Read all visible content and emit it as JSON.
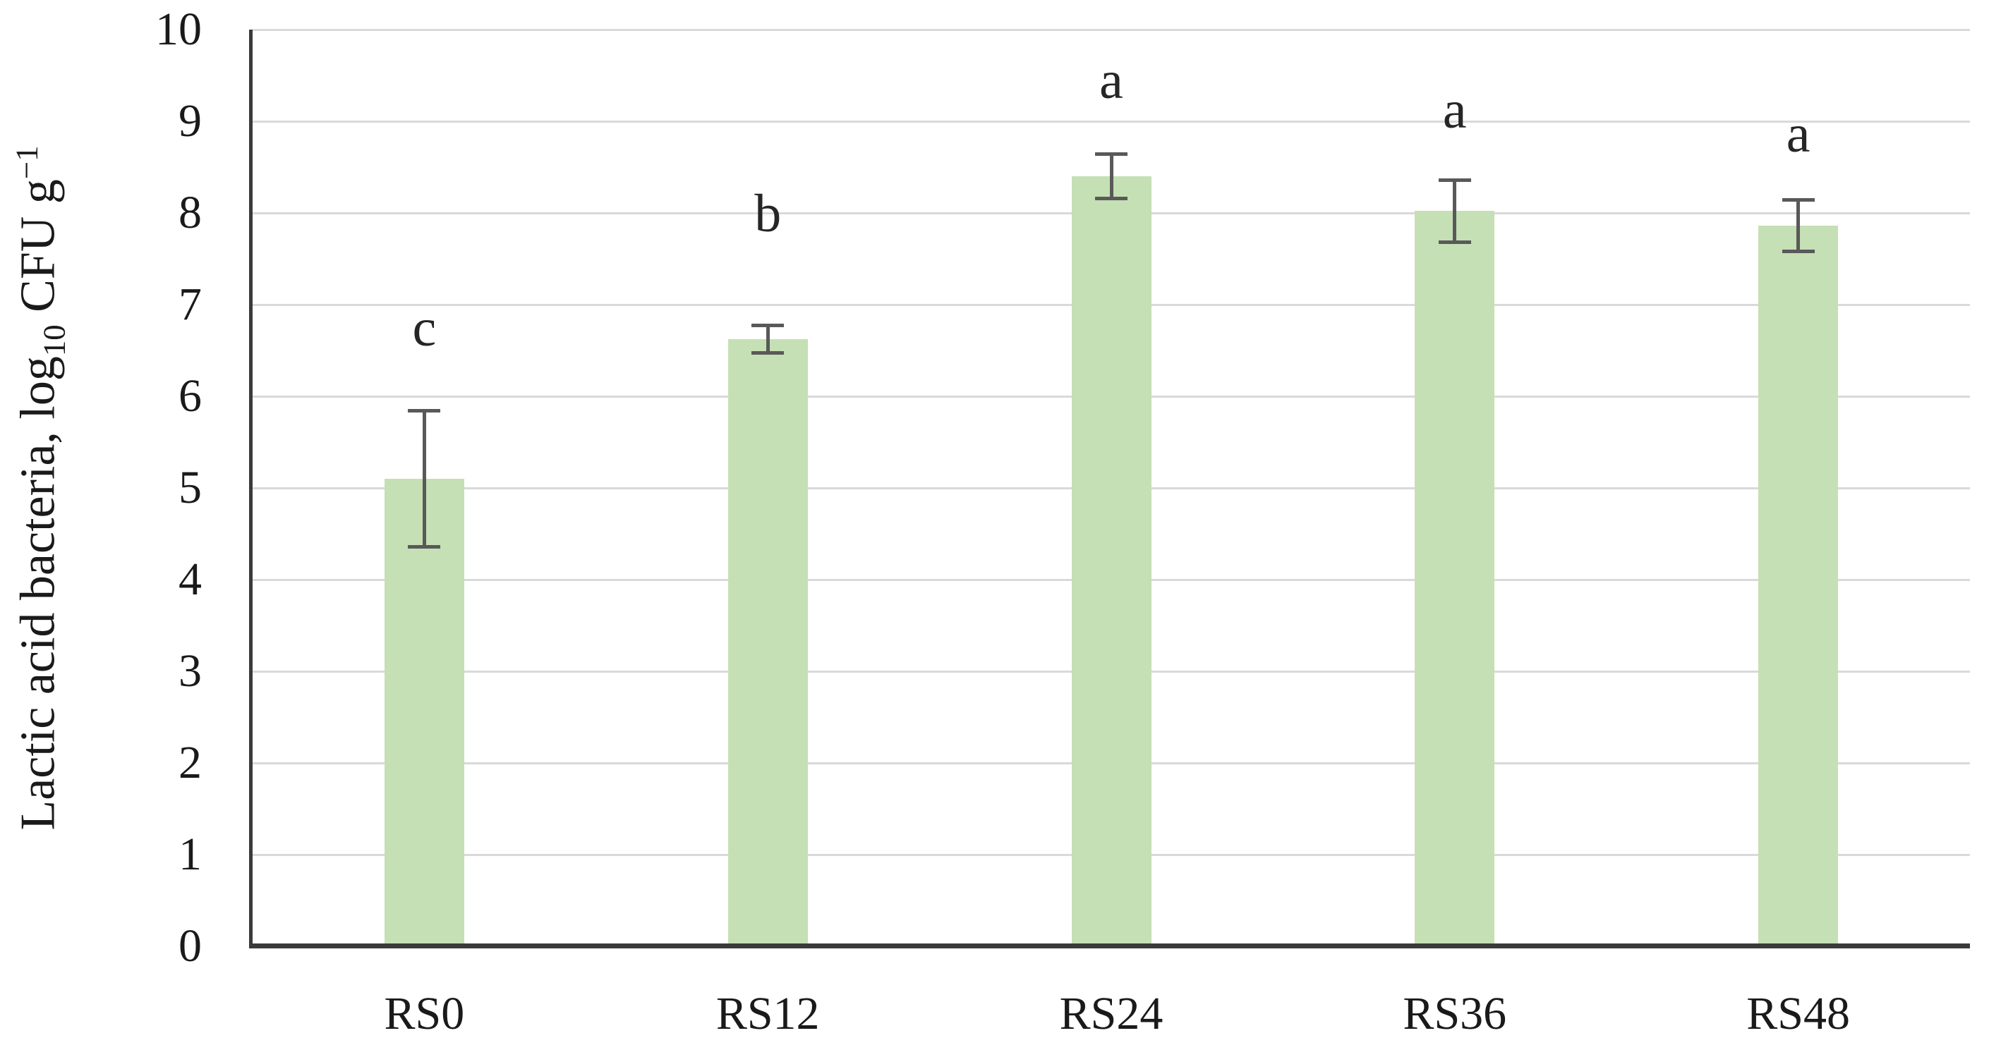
{
  "figure": {
    "background": "#ffffff"
  },
  "chart_data": {
    "type": "bar",
    "title": "",
    "xlabel": "",
    "ylabel": "Lactic acid bacteria, log10 CFU g−1",
    "ylabel_parts": {
      "prefix": "Lactic acid bacteria, log",
      "sub": "10",
      "mid": " CFU g",
      "sup": "−1"
    },
    "categories": [
      "RS0",
      "RS12",
      "RS24",
      "RS36",
      "RS48"
    ],
    "values": [
      5.1,
      6.62,
      8.4,
      8.02,
      7.86
    ],
    "errors": [
      0.74,
      0.15,
      0.24,
      0.34,
      0.28
    ],
    "sig_letters": [
      {
        "label": "c",
        "y": 6.75
      },
      {
        "label": "b",
        "y": 7.99
      },
      {
        "label": "a",
        "y": 9.45
      },
      {
        "label": "a",
        "y": 9.12
      },
      {
        "label": "a",
        "y": 8.86
      }
    ],
    "ylim": [
      0,
      10
    ],
    "ytick_step": 1,
    "yticks": [
      "0",
      "1",
      "2",
      "3",
      "4",
      "5",
      "6",
      "7",
      "8",
      "9",
      "10"
    ],
    "grid": true,
    "legend": false,
    "colors": {
      "bar_fill": "#c5e0b4",
      "gridline": "#d9d9d9",
      "axis": "#3a3a3a",
      "error_bar": "#595959",
      "text": "#1a1a1a",
      "background": "#ffffff"
    }
  }
}
